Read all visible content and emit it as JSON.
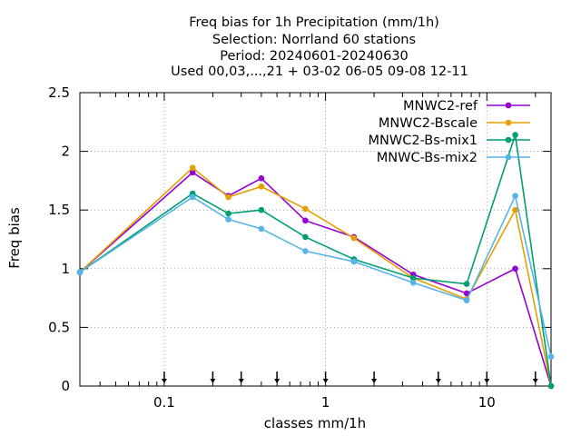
{
  "chart_data": {
    "type": "line",
    "title_lines": [
      "Freq bias  for 1h Precipitation (mm/1h)",
      "Selection: Norrland     60 stations",
      "Period: 20240601-20240630",
      "Used 00,03,...,21 + 03-02 06-05 09-08 12-11"
    ],
    "xlabel": "classes mm/1h",
    "ylabel": "Freq bias",
    "x_scale": "log",
    "xlim": [
      0.03,
      25
    ],
    "ylim": [
      0,
      2.5
    ],
    "x_ticks": [
      0.1,
      1,
      10
    ],
    "x_tick_labels": [
      "0.1",
      "1",
      "10"
    ],
    "y_ticks": [
      0,
      0.5,
      1,
      1.5,
      2,
      2.5
    ],
    "y_tick_labels": [
      "0",
      "0.5",
      "1",
      "1.5",
      "2",
      "2.5"
    ],
    "grid": true,
    "legend_position": "top-right",
    "class_limits": [
      0.1,
      0.2,
      0.3,
      0.5,
      1,
      2,
      5,
      10,
      20
    ],
    "series": [
      {
        "name": "MNWC2-ref",
        "color": "#9400d3",
        "x": [
          0.03,
          0.15,
          0.25,
          0.4,
          0.75,
          1.5,
          3.5,
          7.5,
          15,
          25
        ],
        "values": [
          0.97,
          1.82,
          1.62,
          1.77,
          1.41,
          1.27,
          0.95,
          0.79,
          1.0,
          0.0
        ]
      },
      {
        "name": "MNWC2-Bscale",
        "color": "#e69f00",
        "x": [
          0.03,
          0.15,
          0.25,
          0.4,
          0.75,
          1.5,
          3.5,
          7.5,
          15,
          25
        ],
        "values": [
          0.97,
          1.86,
          1.61,
          1.7,
          1.51,
          1.26,
          0.92,
          0.74,
          1.5,
          0.0
        ]
      },
      {
        "name": "MNWC2-Bs-mix1",
        "color": "#009e73",
        "x": [
          0.03,
          0.15,
          0.25,
          0.4,
          0.75,
          1.5,
          3.5,
          7.5,
          15,
          25
        ],
        "values": [
          0.97,
          1.64,
          1.47,
          1.5,
          1.27,
          1.08,
          0.92,
          0.87,
          2.14,
          0.0
        ]
      },
      {
        "name": "MNWC-Bs-mix2",
        "color": "#56b4e9",
        "x": [
          0.03,
          0.15,
          0.25,
          0.4,
          0.75,
          1.5,
          3.5,
          7.5,
          15,
          25
        ],
        "values": [
          0.97,
          1.61,
          1.42,
          1.34,
          1.15,
          1.06,
          0.88,
          0.73,
          1.62,
          0.25
        ]
      }
    ]
  }
}
